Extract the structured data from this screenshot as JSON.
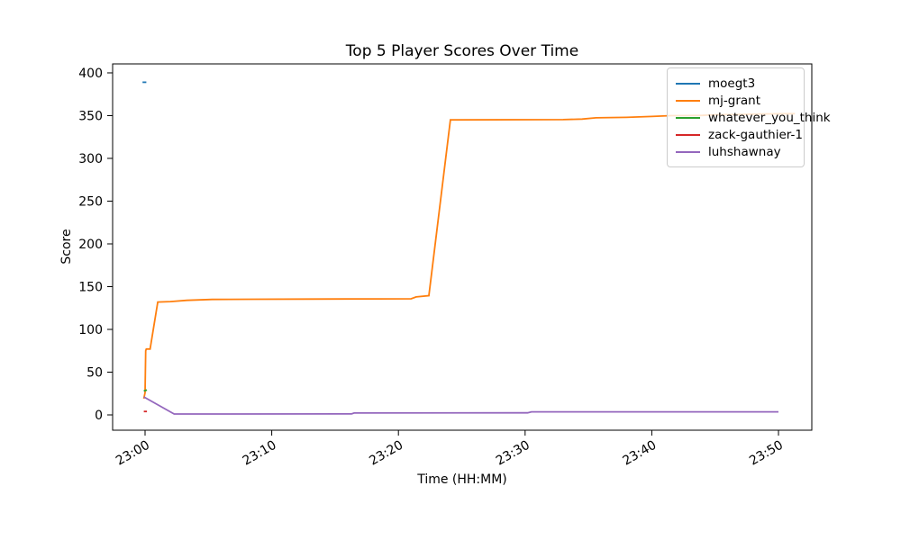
{
  "figure": {
    "background": "#ffffff"
  },
  "chart_data": {
    "type": "line",
    "title": "Top 5 Player Scores Over Time",
    "xlabel": "Time (HH:MM)",
    "ylabel": "Score",
    "grid": false,
    "legend_position": "upper right",
    "x_ticks": [
      {
        "minute": 0,
        "label": "23:00"
      },
      {
        "minute": 10,
        "label": "23:10"
      },
      {
        "minute": 20,
        "label": "23:20"
      },
      {
        "minute": 30,
        "label": "23:30"
      },
      {
        "minute": 40,
        "label": "23:40"
      },
      {
        "minute": 50,
        "label": "23:50"
      }
    ],
    "y_ticks": [
      0,
      50,
      100,
      150,
      200,
      250,
      300,
      350,
      400
    ],
    "xlim_minutes": [
      -2.56,
      52.63
    ],
    "ylim": [
      -17.9,
      410.5
    ],
    "x_tick_rotation_deg": 30,
    "series": [
      {
        "name": "moegt3",
        "color": "#1f77b4",
        "points": [
          [
            -0.2,
            389
          ],
          [
            0.1,
            389
          ]
        ]
      },
      {
        "name": "mj-grant",
        "color": "#ff7f0e",
        "points": [
          [
            -0.1,
            19
          ],
          [
            0,
            26
          ],
          [
            0.05,
            75
          ],
          [
            0.1,
            77
          ],
          [
            0.4,
            77
          ],
          [
            1.0,
            132
          ],
          [
            2.0,
            132.5
          ],
          [
            3.3,
            134
          ],
          [
            5.3,
            135
          ],
          [
            8.5,
            135.3
          ],
          [
            13,
            135.5
          ],
          [
            21,
            135.8
          ],
          [
            21.4,
            138
          ],
          [
            22.4,
            139.5
          ],
          [
            24.1,
            345
          ],
          [
            33,
            345.3
          ],
          [
            34.5,
            346
          ],
          [
            35.6,
            347.5
          ],
          [
            38,
            348
          ],
          [
            40,
            349
          ],
          [
            41.5,
            350
          ],
          [
            44,
            350.3
          ],
          [
            45,
            351
          ],
          [
            47,
            351.3
          ],
          [
            48.5,
            352
          ],
          [
            51.3,
            352.3
          ]
        ]
      },
      {
        "name": "whatever_you_think",
        "color": "#2ca02c",
        "points": [
          [
            -0.1,
            28
          ],
          [
            0.15,
            29
          ]
        ]
      },
      {
        "name": "zack-gauthier-1",
        "color": "#d62728",
        "points": [
          [
            -0.1,
            4
          ],
          [
            0.15,
            4
          ]
        ]
      },
      {
        "name": "luhshawnay",
        "color": "#9467bd",
        "points": [
          [
            -0.1,
            21
          ],
          [
            2.3,
            1
          ],
          [
            16.3,
            1.2
          ],
          [
            16.5,
            2.2
          ],
          [
            30.2,
            2.4
          ],
          [
            30.5,
            3.6
          ],
          [
            50,
            3.6
          ]
        ]
      }
    ]
  }
}
